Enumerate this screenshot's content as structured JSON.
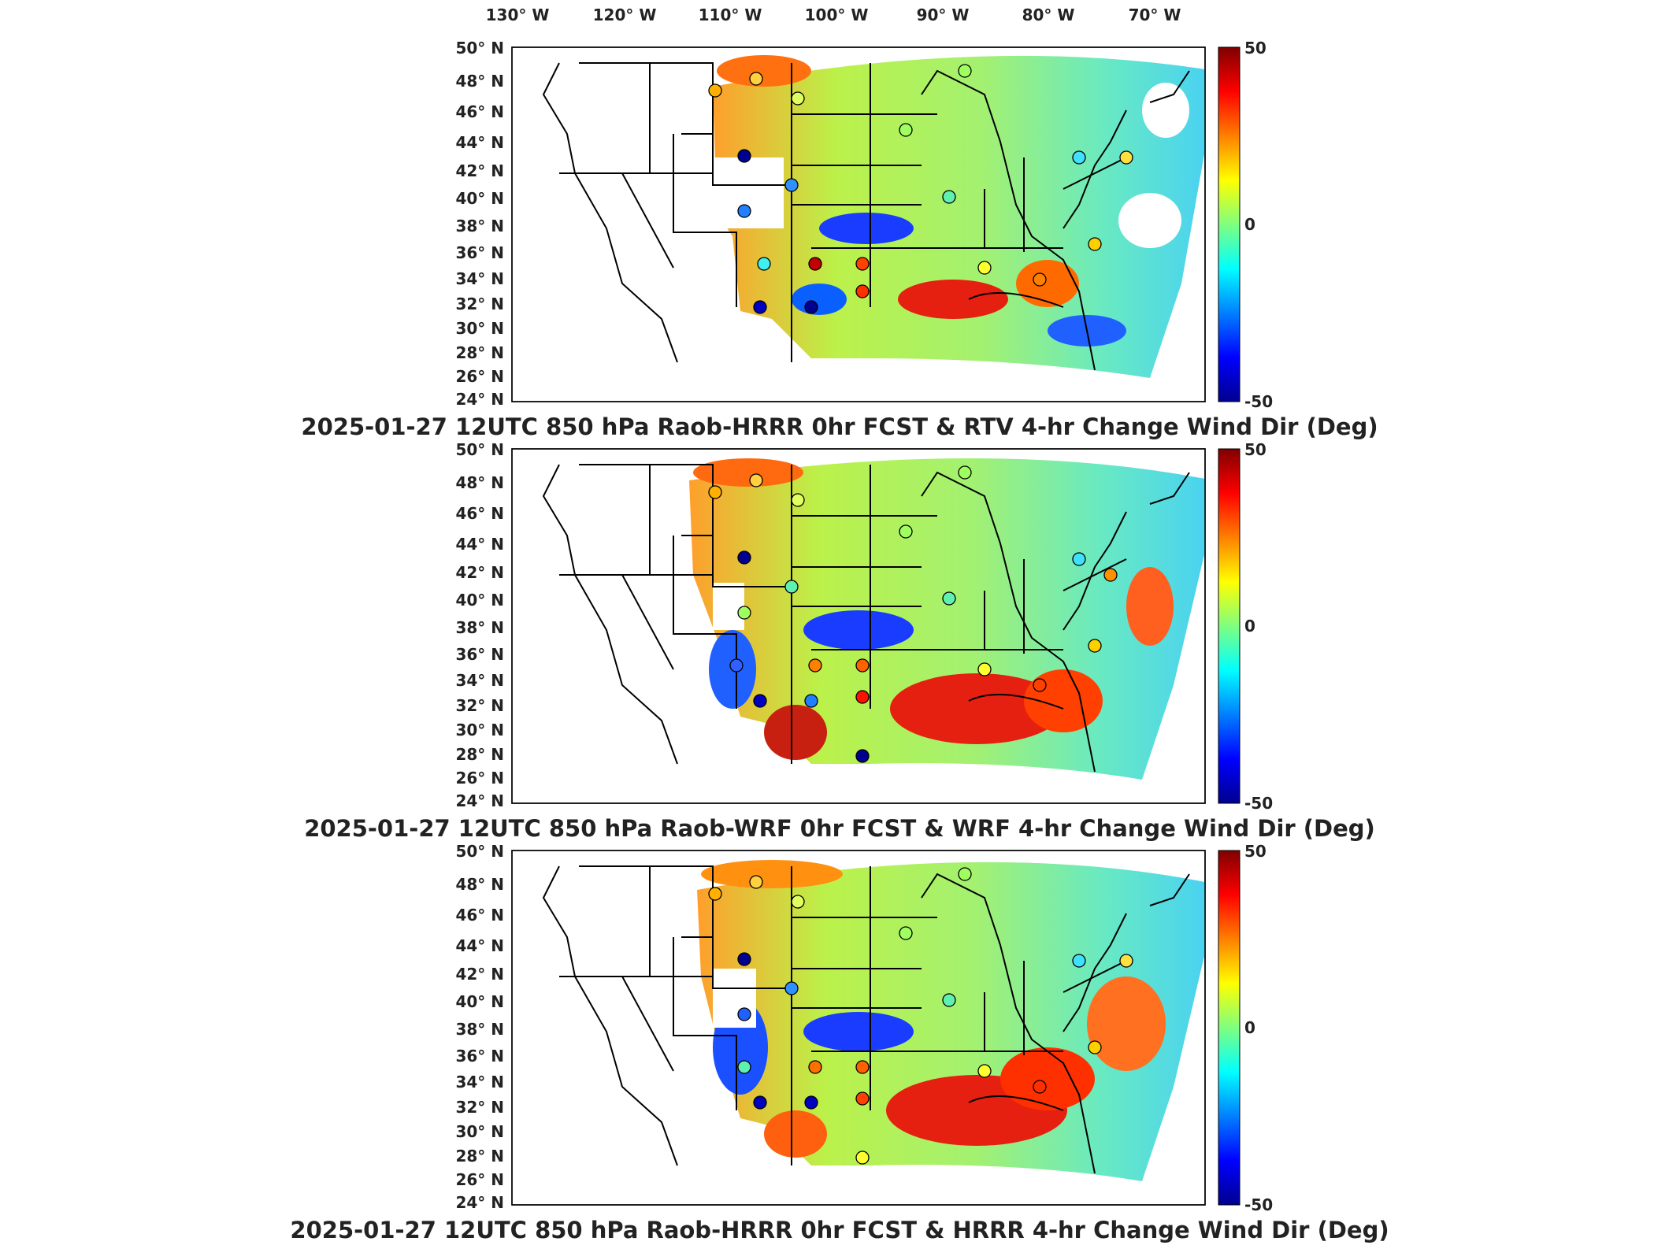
{
  "longitude_labels": [
    "130° W",
    "120° W",
    "110° W",
    "100° W",
    "90° W",
    "80° W",
    "70° W"
  ],
  "latitude_labels": [
    "50° N",
    "48° N",
    "46° N",
    "44° N",
    "42° N",
    "40° N",
    "38° N",
    "36° N",
    "34° N",
    "32° N",
    "30° N",
    "28° N",
    "26° N",
    "24° N"
  ],
  "panels": [
    {
      "title": "2025-01-27 12UTC 850 hPa Raob-HRRR 0hr FCST & RTV 4-hr Change Wind Dir (Deg)",
      "colorbar": {
        "max": "50",
        "mid": "0",
        "min": "-50"
      }
    },
    {
      "title": "2025-01-27 12UTC 850 hPa Raob-WRF 0hr FCST & WRF 4-hr Change Wind Dir (Deg)",
      "colorbar": {
        "max": "50",
        "mid": "0",
        "min": "-50"
      }
    },
    {
      "title": "2025-01-27 12UTC 850 hPa Raob-HRRR 0hr FCST & HRRR 4-hr Change Wind Dir (Deg)",
      "colorbar": {
        "max": "50",
        "mid": "0",
        "min": "-50"
      }
    }
  ],
  "colors": {
    "jet_low": "#00008f",
    "jet_mid": "#7fff7f",
    "jet_high": "#800000",
    "outline": "#000000"
  }
}
